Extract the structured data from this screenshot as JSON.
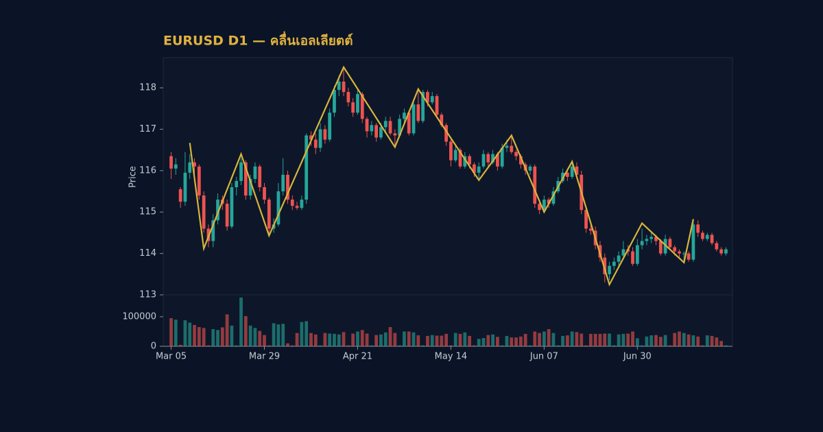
{
  "chart_data": {
    "type": "candlestick",
    "title": "EURUSD D1 — คลื่นเอลเลียตต์",
    "ylabel": "Price",
    "categories": [
      "Mar 05",
      null,
      null,
      null,
      null,
      null,
      null,
      null,
      null,
      null,
      null,
      null,
      null,
      null,
      null,
      null,
      null,
      null,
      null,
      null,
      "Mar 29",
      null,
      null,
      null,
      null,
      null,
      null,
      null,
      null,
      null,
      null,
      null,
      null,
      null,
      null,
      null,
      null,
      null,
      null,
      null,
      "Apr 21",
      null,
      null,
      null,
      null,
      null,
      null,
      null,
      null,
      null,
      null,
      null,
      null,
      null,
      null,
      null,
      null,
      null,
      null,
      null,
      "May 14",
      null,
      null,
      null,
      null,
      null,
      null,
      null,
      null,
      null,
      null,
      null,
      null,
      null,
      null,
      null,
      null,
      null,
      null,
      null,
      "Jun 07",
      null,
      null,
      null,
      null,
      null,
      null,
      null,
      null,
      null,
      null,
      null,
      null,
      null,
      null,
      null,
      null,
      null,
      null,
      null,
      "Jun 30",
      null,
      null,
      null,
      null,
      null,
      null,
      null,
      null,
      null,
      null,
      null,
      null,
      null,
      null,
      null,
      null,
      null,
      null,
      null
    ],
    "candles": [
      [
        116.35,
        116.45,
        115.8,
        116.05
      ],
      [
        116.05,
        116.3,
        115.9,
        116.15
      ],
      [
        115.55,
        115.6,
        115.1,
        115.25
      ],
      [
        115.25,
        116.45,
        115.15,
        115.95
      ],
      [
        115.95,
        116.4,
        115.8,
        116.2
      ],
      [
        116.2,
        116.3,
        115.9,
        116.1
      ],
      [
        116.1,
        116.15,
        115.3,
        115.4
      ],
      [
        115.4,
        115.5,
        114.5,
        114.6
      ],
      [
        114.6,
        114.7,
        114.15,
        114.3
      ],
      [
        114.3,
        114.95,
        114.15,
        114.8
      ],
      [
        114.8,
        115.45,
        114.7,
        115.3
      ],
      [
        115.3,
        115.4,
        115.05,
        115.2
      ],
      [
        115.2,
        115.3,
        114.55,
        114.65
      ],
      [
        114.65,
        115.7,
        114.6,
        115.6
      ],
      [
        115.6,
        115.85,
        115.4,
        115.75
      ],
      [
        115.75,
        116.3,
        115.65,
        116.2
      ],
      [
        116.2,
        116.25,
        115.3,
        115.4
      ],
      [
        115.4,
        115.9,
        115.3,
        115.8
      ],
      [
        115.8,
        116.2,
        115.7,
        116.1
      ],
      [
        116.1,
        116.15,
        115.5,
        115.6
      ],
      [
        115.6,
        115.7,
        115.2,
        115.3
      ],
      [
        115.3,
        115.35,
        114.45,
        114.6
      ],
      [
        114.6,
        114.85,
        114.5,
        114.7
      ],
      [
        114.7,
        115.7,
        114.65,
        115.5
      ],
      [
        115.5,
        116.3,
        115.4,
        115.9
      ],
      [
        115.9,
        116.0,
        115.2,
        115.3
      ],
      [
        115.3,
        115.4,
        115.05,
        115.15
      ],
      [
        115.15,
        115.25,
        115.05,
        115.1
      ],
      [
        115.1,
        115.4,
        115.05,
        115.3
      ],
      [
        115.3,
        116.9,
        115.2,
        116.85
      ],
      [
        116.85,
        116.95,
        116.6,
        116.75
      ],
      [
        116.75,
        116.9,
        116.4,
        116.55
      ],
      [
        116.55,
        117.15,
        116.45,
        117.0
      ],
      [
        117.0,
        117.1,
        116.65,
        116.75
      ],
      [
        116.75,
        117.5,
        116.7,
        117.4
      ],
      [
        117.4,
        118.05,
        117.3,
        117.95
      ],
      [
        117.95,
        118.3,
        117.8,
        118.15
      ],
      [
        118.15,
        118.5,
        117.8,
        117.9
      ],
      [
        117.9,
        118.0,
        117.55,
        117.65
      ],
      [
        117.65,
        117.75,
        117.3,
        117.4
      ],
      [
        117.4,
        117.95,
        117.35,
        117.85
      ],
      [
        117.85,
        117.9,
        117.15,
        117.25
      ],
      [
        117.25,
        117.3,
        116.8,
        116.95
      ],
      [
        116.95,
        117.2,
        116.85,
        117.1
      ],
      [
        117.1,
        117.15,
        116.7,
        116.8
      ],
      [
        116.8,
        117.15,
        116.75,
        117.05
      ],
      [
        117.05,
        117.3,
        116.95,
        117.2
      ],
      [
        117.2,
        117.3,
        116.85,
        116.9
      ],
      [
        116.9,
        117.0,
        116.6,
        116.85
      ],
      [
        116.85,
        117.35,
        116.8,
        117.25
      ],
      [
        117.25,
        117.5,
        117.15,
        117.4
      ],
      [
        117.4,
        117.45,
        116.85,
        116.9
      ],
      [
        116.9,
        117.7,
        116.85,
        117.6
      ],
      [
        117.6,
        117.95,
        117.15,
        117.2
      ],
      [
        117.2,
        117.95,
        117.15,
        117.9
      ],
      [
        117.9,
        117.95,
        117.55,
        117.65
      ],
      [
        117.65,
        117.9,
        117.6,
        117.8
      ],
      [
        117.8,
        117.85,
        117.3,
        117.35
      ],
      [
        117.35,
        117.4,
        117.05,
        117.1
      ],
      [
        117.1,
        117.15,
        116.6,
        116.7
      ],
      [
        116.7,
        116.75,
        116.1,
        116.25
      ],
      [
        116.25,
        116.6,
        116.2,
        116.5
      ],
      [
        116.5,
        116.55,
        116.05,
        116.1
      ],
      [
        116.1,
        116.45,
        116.05,
        116.35
      ],
      [
        116.35,
        116.4,
        116.05,
        116.15
      ],
      [
        116.15,
        116.2,
        115.85,
        115.95
      ],
      [
        115.95,
        116.2,
        115.8,
        116.1
      ],
      [
        116.1,
        116.5,
        116.05,
        116.4
      ],
      [
        116.4,
        116.45,
        116.1,
        116.2
      ],
      [
        116.2,
        116.5,
        116.15,
        116.4
      ],
      [
        116.4,
        116.45,
        116.0,
        116.1
      ],
      [
        116.1,
        116.65,
        116.05,
        116.55
      ],
      [
        116.55,
        116.75,
        116.45,
        116.6
      ],
      [
        116.6,
        116.85,
        116.4,
        116.45
      ],
      [
        116.45,
        116.5,
        116.25,
        116.35
      ],
      [
        116.35,
        116.4,
        116.05,
        116.15
      ],
      [
        116.15,
        116.2,
        115.9,
        116.0
      ],
      [
        116.0,
        116.15,
        115.9,
        116.1
      ],
      [
        116.1,
        116.15,
        115.1,
        115.2
      ],
      [
        115.2,
        115.3,
        114.95,
        115.05
      ],
      [
        115.05,
        115.4,
        115.0,
        115.3
      ],
      [
        115.3,
        115.35,
        115.1,
        115.2
      ],
      [
        115.2,
        115.6,
        115.15,
        115.5
      ],
      [
        115.5,
        115.85,
        115.45,
        115.75
      ],
      [
        115.75,
        116.05,
        115.7,
        115.95
      ],
      [
        115.95,
        116.05,
        115.75,
        115.85
      ],
      [
        115.85,
        116.2,
        115.8,
        116.1
      ],
      [
        116.1,
        116.2,
        115.85,
        115.9
      ],
      [
        115.9,
        116.0,
        114.95,
        115.05
      ],
      [
        115.05,
        115.1,
        114.5,
        114.6
      ],
      [
        114.6,
        114.7,
        114.45,
        114.55
      ],
      [
        114.55,
        114.65,
        114.1,
        114.2
      ],
      [
        114.2,
        114.3,
        113.8,
        113.9
      ],
      [
        113.9,
        114.0,
        113.3,
        113.5
      ],
      [
        113.5,
        113.8,
        113.35,
        113.7
      ],
      [
        113.7,
        113.9,
        113.6,
        113.8
      ],
      [
        113.8,
        114.05,
        113.7,
        113.95
      ],
      [
        113.95,
        114.3,
        113.85,
        114.1
      ],
      [
        114.1,
        114.2,
        113.95,
        114.05
      ],
      [
        114.05,
        114.15,
        113.7,
        113.75
      ],
      [
        113.75,
        114.35,
        113.7,
        114.2
      ],
      [
        114.2,
        114.6,
        114.1,
        114.3
      ],
      [
        114.3,
        114.45,
        114.2,
        114.35
      ],
      [
        114.35,
        114.5,
        114.25,
        114.4
      ],
      [
        114.4,
        114.45,
        114.2,
        114.3
      ],
      [
        114.3,
        114.35,
        113.95,
        114.0
      ],
      [
        114.0,
        114.45,
        113.95,
        114.35
      ],
      [
        114.35,
        114.4,
        114.1,
        114.15
      ],
      [
        114.15,
        114.2,
        113.95,
        114.05
      ],
      [
        114.05,
        114.1,
        113.9,
        114.0
      ],
      [
        114.0,
        114.05,
        113.8,
        114.0
      ],
      [
        114.0,
        114.05,
        113.8,
        113.85
      ],
      [
        113.85,
        114.8,
        113.8,
        114.7
      ],
      [
        114.7,
        114.8,
        114.4,
        114.5
      ],
      [
        114.5,
        114.55,
        114.3,
        114.35
      ],
      [
        114.35,
        114.5,
        114.3,
        114.45
      ],
      [
        114.45,
        114.5,
        114.2,
        114.25
      ],
      [
        114.25,
        114.3,
        114.05,
        114.1
      ],
      [
        114.1,
        114.15,
        113.95,
        114.0
      ],
      [
        114.0,
        114.15,
        113.95,
        114.1
      ]
    ],
    "volume": [
      95000,
      90000,
      5000,
      88000,
      80000,
      72000,
      65000,
      62000,
      3000,
      58000,
      55000,
      64000,
      108000,
      70000,
      3000,
      165000,
      102000,
      70000,
      62000,
      52000,
      38000,
      3000,
      78000,
      74000,
      76000,
      10000,
      3000,
      45000,
      82000,
      85000,
      45000,
      40000,
      3000,
      45000,
      43000,
      42000,
      40000,
      48000,
      3000,
      43000,
      50000,
      55000,
      43000,
      3000,
      38000,
      40000,
      47000,
      65000,
      45000,
      3000,
      50000,
      50000,
      47000,
      37000,
      3000,
      35000,
      38000,
      36000,
      36000,
      42000,
      3000,
      45000,
      42000,
      47000,
      35000,
      3000,
      25000,
      28000,
      38000,
      40000,
      32000,
      3000,
      35000,
      30000,
      30000,
      33000,
      42000,
      3000,
      50000,
      45000,
      50000,
      58000,
      45000,
      3000,
      35000,
      37000,
      50000,
      48000,
      43000,
      3000,
      42000,
      42000,
      42000,
      43000,
      43000,
      3000,
      40000,
      42000,
      43000,
      50000,
      27000,
      3000,
      33000,
      37000,
      38000,
      32000,
      38000,
      3000,
      45000,
      50000,
      45000,
      40000,
      37000,
      33000,
      3000,
      37000,
      35000,
      30000,
      18000,
      3000
    ],
    "zigzag": {
      "color": "#d9b43c",
      "x": [
        4,
        7,
        15,
        21,
        37,
        48,
        53,
        66,
        73,
        80,
        86,
        94,
        101,
        110,
        112
      ],
      "values": [
        116.67,
        114.12,
        116.4,
        114.43,
        118.5,
        116.57,
        117.97,
        115.77,
        116.85,
        115.0,
        116.22,
        113.25,
        114.73,
        113.78,
        114.83
      ]
    },
    "up_color": "#26a69a",
    "down_color": "#ef5350",
    "xlim": [
      -1.7,
      120.4
    ],
    "ylim": [
      113,
      118.73
    ],
    "yticks": [
      113,
      114,
      115,
      116,
      117,
      118
    ],
    "y2lim": [
      0,
      174000
    ],
    "y2ticks": [
      0,
      100000
    ]
  }
}
